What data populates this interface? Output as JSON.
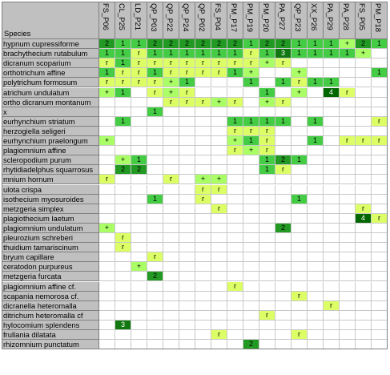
{
  "corner_label": "Species",
  "plots": [
    "FS_P06",
    "CL_P25",
    "LD_P21",
    "QP_P03",
    "QP_P22",
    "QP_P24",
    "QP_P02",
    "FS_P04",
    "PM_P17",
    "PM_P19",
    "PM_P20",
    "PA_P27",
    "QP_P23",
    "XX_P26",
    "PA_P29",
    "PA_P28",
    "FS_P05",
    "PM_P18"
  ],
  "colors": {
    "r": "#ddff66",
    "+": "#aaff66",
    "1": "#44cc44",
    "2": "#229922",
    "3": "#117711",
    "4": "#006600"
  },
  "rows": [
    {
      "species": "hypnum cupressiforme",
      "cells": {
        "0": "2",
        "1": "1",
        "2": "1",
        "3": "2",
        "4": "2",
        "5": "2",
        "6": "2",
        "7": "2",
        "8": "2",
        "9": "1",
        "10": "2",
        "11": "2",
        "12": "1",
        "13": "1",
        "14": "1",
        "15": "+",
        "16": "2",
        "17": "1"
      }
    },
    {
      "species": "brachythecium rutabulum",
      "cells": {
        "0": "1",
        "1": "1",
        "2": "r",
        "3": "1",
        "4": "1",
        "5": "1",
        "6": "1",
        "7": "1",
        "8": "1",
        "9": "r",
        "10": "1",
        "11": "3",
        "12": "1",
        "13": "1",
        "14": "1",
        "15": "1",
        "16": "+"
      }
    },
    {
      "species": "dicranum scoparium",
      "cells": {
        "0": "r",
        "1": "1",
        "2": "r",
        "3": "r",
        "4": "r",
        "5": "r",
        "6": "r",
        "7": "r",
        "8": "r",
        "9": "r",
        "10": "+",
        "11": "r"
      }
    },
    {
      "species": "orthotrichum affine",
      "cells": {
        "0": "1",
        "1": "r",
        "2": "r",
        "3": "1",
        "4": "r",
        "5": "r",
        "6": "r",
        "7": "r",
        "8": "1",
        "9": "+",
        "12": "+",
        "17": "1"
      }
    },
    {
      "species": "polytrichum formosum",
      "cells": {
        "0": "r",
        "1": "r",
        "2": "r",
        "3": "r",
        "4": "+",
        "5": "1",
        "9": "1",
        "11": "1",
        "12": "r",
        "13": "1",
        "14": "1"
      }
    },
    {
      "species": "atrichum undulatum",
      "cells": {
        "0": "+",
        "1": "1",
        "3": "r",
        "4": "+",
        "5": "r",
        "10": "1",
        "12": "+",
        "14": "4",
        "15": "r"
      }
    },
    {
      "species": "ortho dicranum montanum",
      "cells": {
        "4": "r",
        "5": "r",
        "6": "r",
        "7": "+",
        "8": "r",
        "10": "+",
        "11": "r"
      }
    },
    {
      "species": "x",
      "cells": {
        "3": "1"
      }
    },
    {
      "species": "eurhynchium striatum",
      "cells": {
        "1": "1",
        "8": "1",
        "9": "1",
        "10": "1",
        "11": "1",
        "13": "1",
        "17": "r"
      }
    },
    {
      "species": "herzogiella seligeri",
      "cells": {
        "8": "r",
        "9": "r",
        "10": "r"
      }
    },
    {
      "species": "eurhynchium praelongum",
      "cells": {
        "0": "+",
        "8": "+",
        "9": "1",
        "10": "r",
        "13": "1",
        "15": "r",
        "16": "r",
        "17": "r"
      }
    },
    {
      "species": "plagiomnium affine",
      "cells": {
        "8": "r",
        "9": "+",
        "10": "r"
      }
    },
    {
      "species": "scleropodium purum",
      "cells": {
        "1": "+",
        "2": "1",
        "10": "1",
        "11": "2",
        "12": "1"
      }
    },
    {
      "species": "rhytidiadelphus squarrosus",
      "cells": {
        "1": "2",
        "2": "2",
        "10": "1",
        "11": "r"
      }
    },
    {
      "species": "mnium hornum",
      "cells": {
        "0": "r",
        "4": "r",
        "6": "+",
        "7": "+"
      }
    },
    {
      "species": "ulota crispa",
      "cells": {
        "6": "r",
        "7": "r"
      }
    },
    {
      "species": "isothecium myosuroides",
      "cells": {
        "3": "1",
        "6": "r",
        "12": "1"
      }
    },
    {
      "species": "metzgeria simplex",
      "cells": {
        "7": "r",
        "16": "r"
      }
    },
    {
      "species": "plagiothecium laetum",
      "cells": {
        "16": "4",
        "17": "r"
      }
    },
    {
      "species": "plagiomnium undulatum",
      "cells": {
        "0": "+",
        "11": "2"
      }
    },
    {
      "species": "pleurozium schreberi",
      "cells": {
        "1": "r"
      }
    },
    {
      "species": "thuidium tamariscinum",
      "cells": {
        "1": "r"
      }
    },
    {
      "species": "bryum capillare",
      "cells": {
        "3": "r"
      }
    },
    {
      "species": "ceratodon purpureus",
      "cells": {
        "2": "+"
      }
    },
    {
      "species": "metzgeria furcata",
      "cells": {
        "3": "2"
      }
    },
    {
      "species": "plagiomnium affine cf.",
      "cells": {
        "8": "r"
      }
    },
    {
      "species": "scapania nemorosa cf.",
      "cells": {
        "12": "r"
      }
    },
    {
      "species": "dicranella heteromalla",
      "cells": {
        "14": "r"
      }
    },
    {
      "species": "ditrichum heteromalla cf",
      "cells": {
        "10": "r"
      }
    },
    {
      "species": "hylocomium splendens",
      "cells": {
        "1": "3"
      }
    },
    {
      "species": "frullania dilatata",
      "cells": {
        "7": "r",
        "12": "r"
      }
    },
    {
      "species": "rhizomnium punctatum",
      "cells": {
        "9": "2"
      }
    }
  ]
}
